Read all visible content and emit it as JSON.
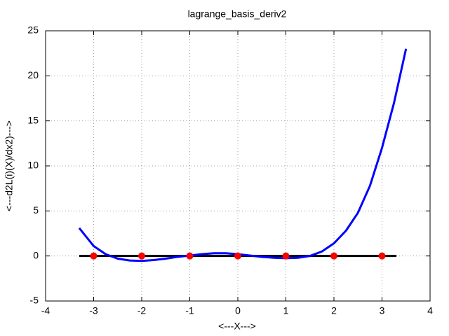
{
  "chart_data": {
    "type": "line",
    "title": "lagrange_basis_deriv2",
    "xlabel": "<---X--->",
    "ylabel": "<---d2L(i)(X)/dx2)--->",
    "xlim": [
      -4,
      4
    ],
    "ylim": [
      -5,
      25
    ],
    "xticks": [
      -4,
      -3,
      -2,
      -1,
      0,
      1,
      2,
      3,
      4
    ],
    "yticks": [
      -5,
      0,
      5,
      10,
      15,
      20,
      25
    ],
    "grid": true,
    "series": [
      {
        "color": "#0000ff",
        "mode": "line",
        "x": [
          -3.3,
          -3.0,
          -2.75,
          -2.5,
          -2.25,
          -2.0,
          -1.75,
          -1.5,
          -1.25,
          -1.0,
          -0.75,
          -0.5,
          -0.25,
          0,
          0.25,
          0.5,
          0.75,
          1.0,
          1.25,
          1.5,
          1.75,
          2.0,
          2.25,
          2.5,
          2.75,
          3.0,
          3.25,
          3.5
        ],
        "values": [
          3.1,
          1.1,
          0.2,
          -0.3,
          -0.5,
          -0.55,
          -0.45,
          -0.3,
          -0.1,
          0.05,
          0.2,
          0.3,
          0.3,
          0.2,
          0.05,
          -0.1,
          -0.2,
          -0.25,
          -0.2,
          0,
          0.5,
          1.4,
          2.8,
          4.8,
          7.8,
          12,
          17,
          23
        ]
      },
      {
        "color": "#000000",
        "mode": "line",
        "x": [
          -3.3,
          3.3
        ],
        "values": [
          0,
          0
        ]
      },
      {
        "color": "#ff0000",
        "mode": "points",
        "x": [
          -3,
          -2,
          -1,
          0,
          1,
          2,
          3
        ],
        "values": [
          0,
          0,
          0,
          0,
          0,
          0,
          0
        ]
      }
    ]
  }
}
